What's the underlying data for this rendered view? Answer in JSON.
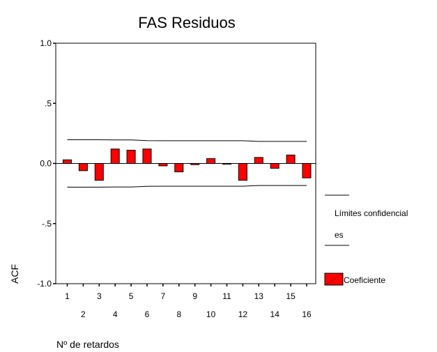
{
  "chart_data": {
    "type": "bar",
    "title": "FAS Residuos",
    "xlabel": "Nº de retardos",
    "ylabel": "ACF",
    "ylim": [
      -1.0,
      1.0
    ],
    "yticks": [
      {
        "value": 1.0,
        "label": "1.0"
      },
      {
        "value": 0.5,
        "label": ".5"
      },
      {
        "value": 0.0,
        "label": "0.0"
      },
      {
        "value": -0.5,
        "label": "-.5"
      },
      {
        "value": -1.0,
        "label": "-1.0"
      }
    ],
    "categories": [
      "1",
      "2",
      "3",
      "4",
      "5",
      "6",
      "7",
      "8",
      "9",
      "10",
      "11",
      "12",
      "13",
      "14",
      "15",
      "16"
    ],
    "series": [
      {
        "name": "Coeficiente",
        "color": "#ff0000",
        "values": [
          0.03,
          -0.06,
          -0.14,
          0.12,
          0.11,
          0.12,
          -0.02,
          -0.07,
          -0.01,
          0.04,
          0.0,
          -0.14,
          0.05,
          -0.04,
          0.07,
          -0.12
        ]
      }
    ],
    "confidence_limits": {
      "name": "Límites confidenciales",
      "upper": [
        0.197,
        0.197,
        0.197,
        0.196,
        0.196,
        0.19,
        0.189,
        0.189,
        0.189,
        0.189,
        0.189,
        0.189,
        0.183,
        0.183,
        0.183,
        0.183
      ],
      "lower": [
        -0.197,
        -0.197,
        -0.197,
        -0.196,
        -0.196,
        -0.19,
        -0.189,
        -0.189,
        -0.189,
        -0.189,
        -0.189,
        -0.189,
        -0.183,
        -0.183,
        -0.183,
        -0.183
      ]
    },
    "legend": {
      "placement": "right",
      "limits_label_line1": "Límites confidencial",
      "limits_label_line2": "es",
      "bar_label": "Coeficiente"
    },
    "grid": false
  }
}
